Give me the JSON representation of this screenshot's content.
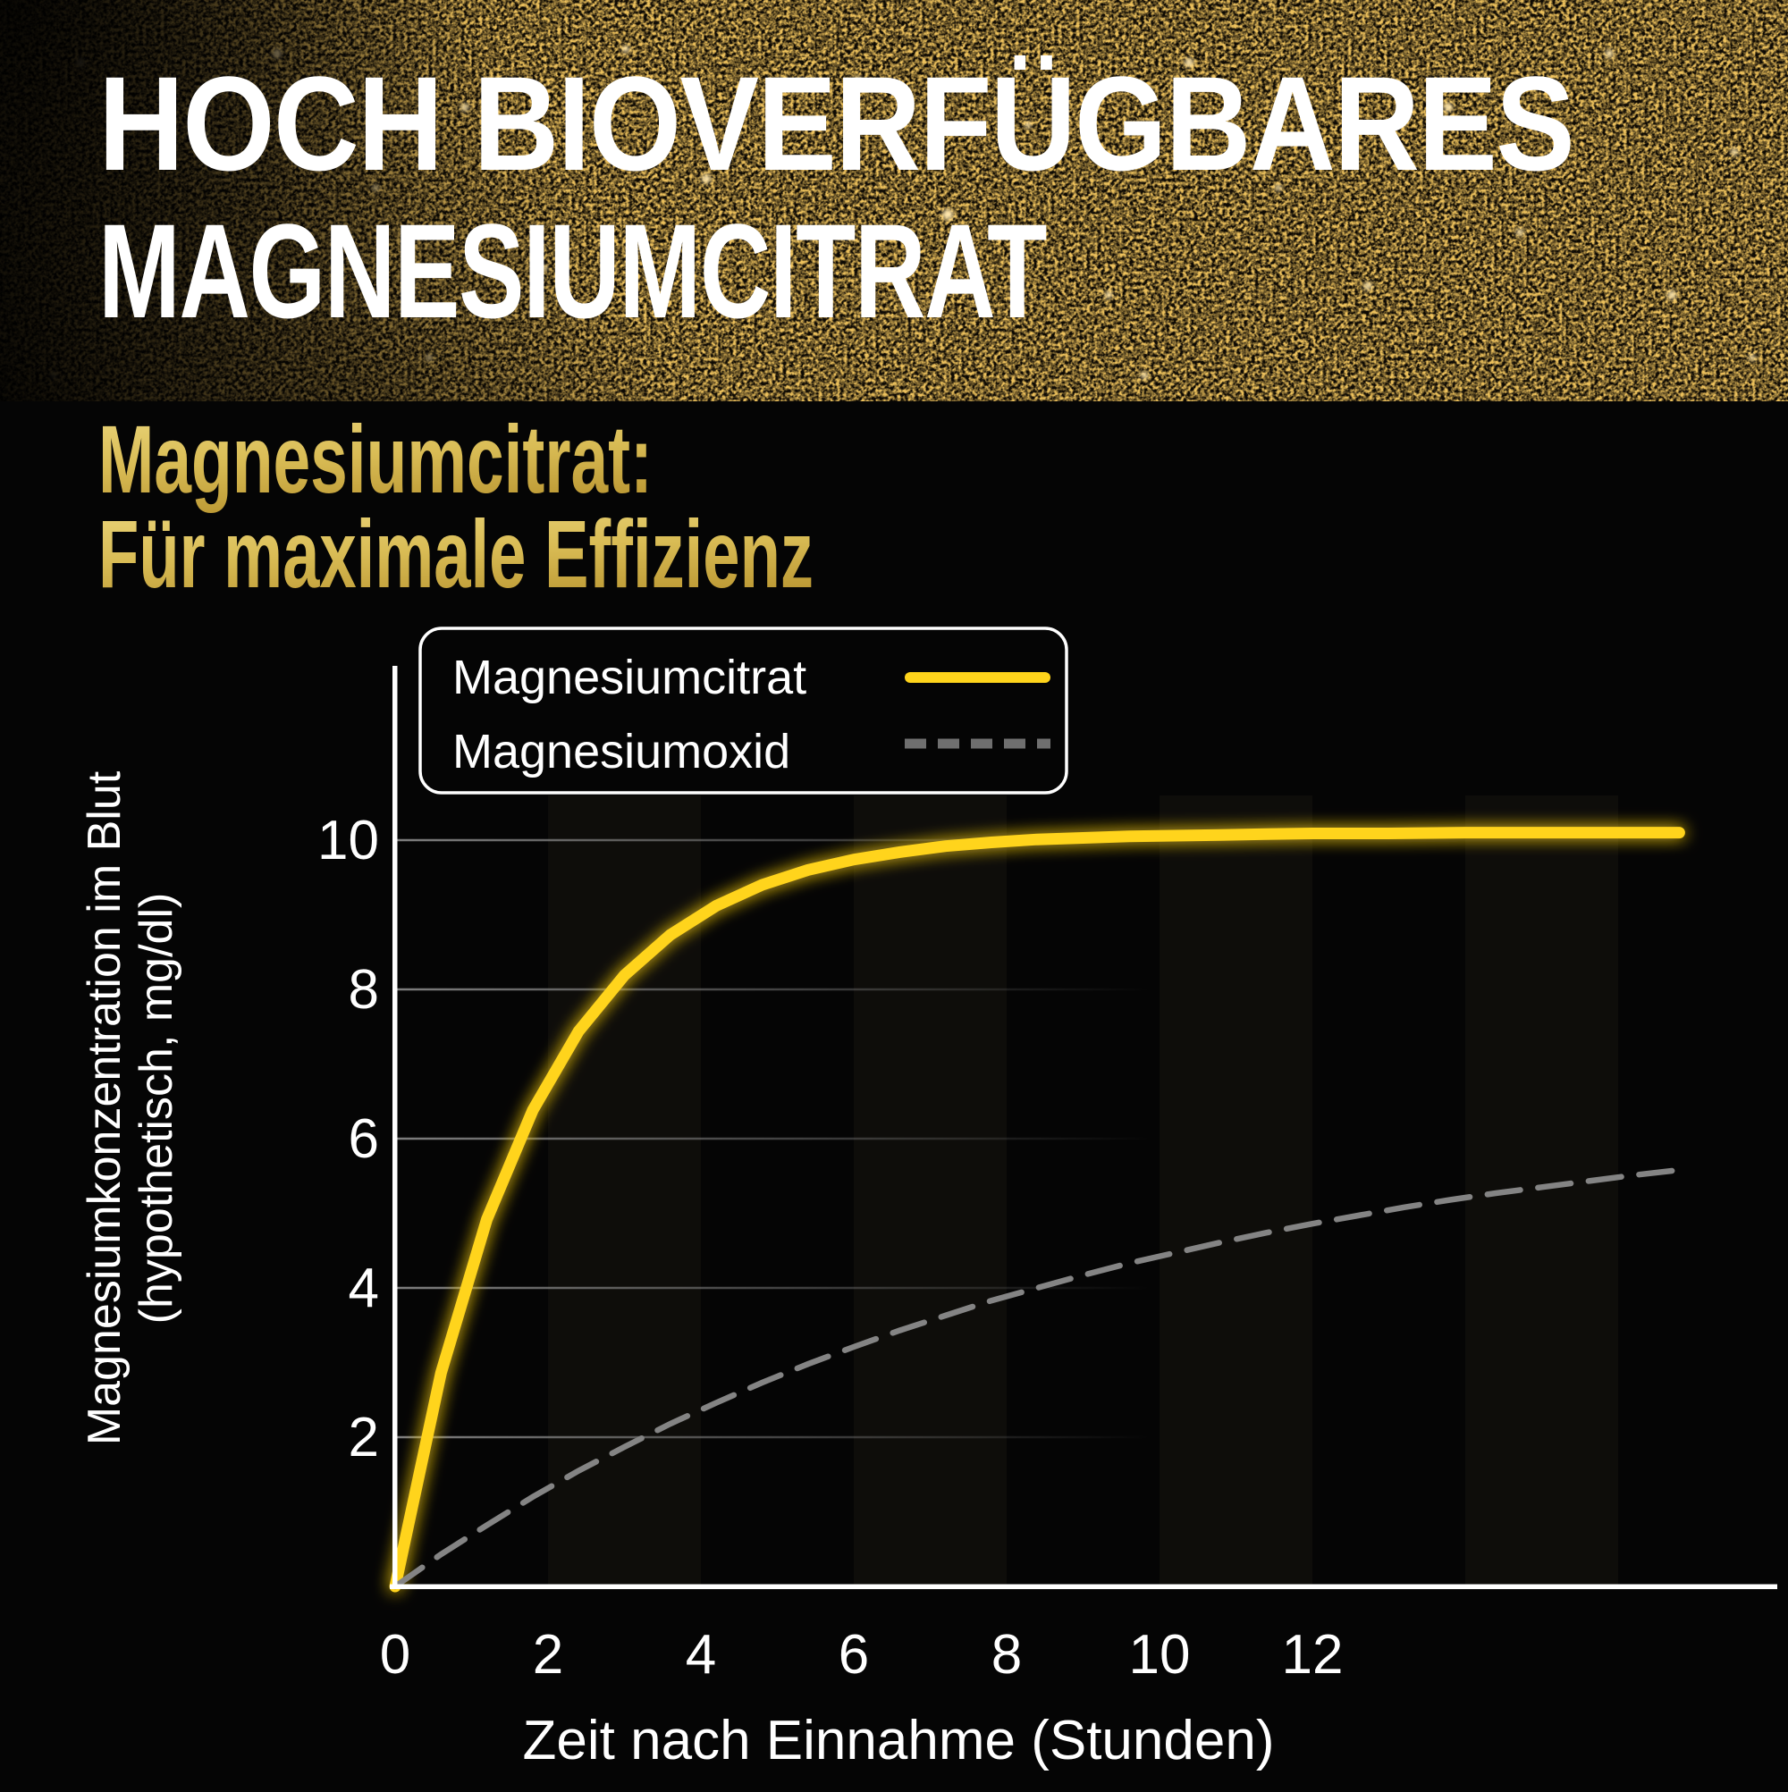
{
  "header": {
    "line1": "HOCH BIOVERFÜGBARES",
    "line2": "MAGNESIUMCITRAT"
  },
  "subtitle": {
    "line1": "Magnesiumcitrat:",
    "line2": "Für maximale Effizienz"
  },
  "legend": {
    "items": [
      {
        "label": "Magnesiumcitrat",
        "style": "solid",
        "color": "#ffd41b"
      },
      {
        "label": "Magnesiumoxid",
        "style": "dashed",
        "color": "#848484"
      }
    ]
  },
  "chart_data": {
    "type": "line",
    "title": "",
    "xlabel": "Zeit nach Einnahme (Stunden)",
    "ylabel": "Magnesiumkonzentration im Blut (hypothetisch, mg/dl)",
    "ylabel_line1": "Magnesiumkonzentration im Blut",
    "ylabel_line2": "(hypothetisch, mg/dl)",
    "xticks": [
      0,
      2,
      4,
      6,
      8,
      10,
      12
    ],
    "yticks": [
      2,
      4,
      6,
      8,
      10
    ],
    "xlim": [
      0,
      18
    ],
    "ylim": [
      0,
      12.3
    ],
    "grid": "horizontal gridlines fading to the right",
    "legend_position": "top-left",
    "background": "black with faint vertical 2-hour bands",
    "series": [
      {
        "name": "Magnesiumcitrat",
        "color": "#ffd41b",
        "style": "solid",
        "points": [
          [
            0,
            0
          ],
          [
            0.6,
            2.86
          ],
          [
            1.2,
            4.92
          ],
          [
            1.8,
            6.38
          ],
          [
            2.4,
            7.44
          ],
          [
            3,
            8.19
          ],
          [
            3.6,
            8.73
          ],
          [
            4.2,
            9.12
          ],
          [
            4.8,
            9.4
          ],
          [
            5.4,
            9.6
          ],
          [
            6,
            9.74
          ],
          [
            6.6,
            9.84
          ],
          [
            7.2,
            9.92
          ],
          [
            7.8,
            9.97
          ],
          [
            8.4,
            10.01
          ],
          [
            9,
            10.03
          ],
          [
            9.6,
            10.05
          ],
          [
            10.2,
            10.06
          ],
          [
            10.8,
            10.07
          ],
          [
            11.4,
            10.08
          ],
          [
            12,
            10.09
          ],
          [
            13,
            10.09
          ],
          [
            14,
            10.1
          ],
          [
            15,
            10.1
          ],
          [
            16,
            10.1
          ],
          [
            16.8,
            10.1
          ]
        ]
      },
      {
        "name": "Magnesiumoxid",
        "color": "#848484",
        "style": "dashed",
        "points": [
          [
            0,
            0
          ],
          [
            0.6,
            0.43
          ],
          [
            1.2,
            0.82
          ],
          [
            1.8,
            1.2
          ],
          [
            2.4,
            1.55
          ],
          [
            3,
            1.87
          ],
          [
            3.6,
            2.18
          ],
          [
            4.2,
            2.46
          ],
          [
            4.8,
            2.73
          ],
          [
            5.4,
            2.98
          ],
          [
            6,
            3.21
          ],
          [
            6.6,
            3.43
          ],
          [
            7.2,
            3.63
          ],
          [
            7.8,
            3.83
          ],
          [
            8.4,
            4
          ],
          [
            9,
            4.17
          ],
          [
            9.6,
            4.33
          ],
          [
            10.2,
            4.47
          ],
          [
            10.8,
            4.61
          ],
          [
            11.4,
            4.74
          ],
          [
            12,
            4.86
          ],
          [
            12.6,
            4.97
          ],
          [
            13.2,
            5.08
          ],
          [
            13.8,
            5.18
          ],
          [
            14.4,
            5.27
          ],
          [
            15,
            5.35
          ],
          [
            15.6,
            5.43
          ],
          [
            16.2,
            5.51
          ],
          [
            16.8,
            5.58
          ]
        ]
      }
    ]
  },
  "colors": {
    "background": "#050505",
    "accent_yellow": "#ffd41b",
    "dashed_gray": "#848484",
    "gold_text": "#d9bc55",
    "white": "#ffffff",
    "gridline": "#787878"
  }
}
